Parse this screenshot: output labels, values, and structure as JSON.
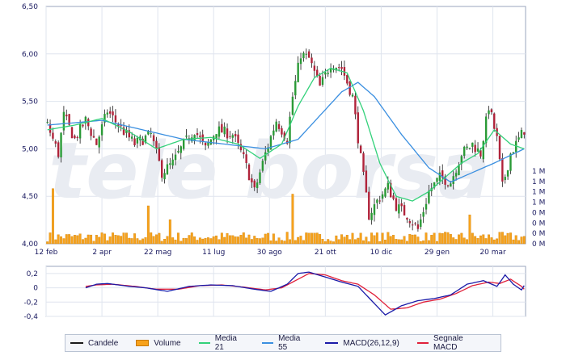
{
  "chart_data": [
    {
      "type": "candlestick",
      "title": "",
      "ylim": [
        4.0,
        6.5
      ],
      "yticks": [
        "6,50",
        "6,00",
        "5,50",
        "5,00",
        "4,50",
        "4,00"
      ],
      "xticks": [
        "12 feb",
        "2 apr",
        "22 mag",
        "11 lug",
        "30 ago",
        "21 ott",
        "10 dic",
        "29 gen",
        "20 mar"
      ],
      "volume_ticks": [
        "1 M",
        "1 M",
        "1 M",
        "1 M",
        "0 M",
        "0 M",
        "0 M",
        "0 M"
      ],
      "watermark": "tele borsa",
      "colors": {
        "up": "#2a9a36",
        "down": "#b0233a",
        "wick": "#1a1a1a",
        "ma21": "#33d17a",
        "ma55": "#3a8fe0",
        "volume": "#f7a21b",
        "macd": "#1a1aa8",
        "signal": "#e0203a",
        "grid": "#dfe4ee",
        "axis_text": "#1a1a60"
      },
      "close_anchors": [
        [
          0,
          5.25
        ],
        [
          4,
          4.95
        ],
        [
          6,
          5.35
        ],
        [
          10,
          5.1
        ],
        [
          14,
          5.3
        ],
        [
          18,
          5.05
        ],
        [
          22,
          5.4
        ],
        [
          26,
          5.25
        ],
        [
          32,
          5.05
        ],
        [
          38,
          5.15
        ],
        [
          42,
          4.75
        ],
        [
          46,
          4.85
        ],
        [
          50,
          5.05
        ],
        [
          54,
          5.2
        ],
        [
          58,
          5.0
        ],
        [
          62,
          5.2
        ],
        [
          68,
          5.15
        ],
        [
          72,
          4.9
        ],
        [
          76,
          4.55
        ],
        [
          80,
          4.95
        ],
        [
          84,
          5.3
        ],
        [
          88,
          5.1
        ],
        [
          90,
          5.55
        ],
        [
          93,
          6.0
        ],
        [
          96,
          5.95
        ],
        [
          100,
          5.65
        ],
        [
          104,
          5.9
        ],
        [
          108,
          5.85
        ],
        [
          112,
          5.55
        ],
        [
          115,
          4.9
        ],
        [
          118,
          4.3
        ],
        [
          121,
          4.45
        ],
        [
          125,
          4.6
        ],
        [
          128,
          4.4
        ],
        [
          132,
          4.3
        ],
        [
          136,
          4.15
        ],
        [
          140,
          4.55
        ],
        [
          144,
          4.7
        ],
        [
          148,
          4.65
        ],
        [
          152,
          4.95
        ],
        [
          156,
          5.05
        ],
        [
          159,
          4.95
        ],
        [
          162,
          5.45
        ],
        [
          165,
          5.1
        ],
        [
          167,
          4.6
        ],
        [
          170,
          4.95
        ],
        [
          173,
          5.1
        ],
        [
          175,
          5.2
        ]
      ],
      "ma21_anchors": [
        [
          0,
          5.2
        ],
        [
          10,
          5.25
        ],
        [
          20,
          5.32
        ],
        [
          30,
          5.18
        ],
        [
          40,
          5.0
        ],
        [
          50,
          5.1
        ],
        [
          60,
          5.12
        ],
        [
          70,
          5.05
        ],
        [
          78,
          4.9
        ],
        [
          86,
          5.05
        ],
        [
          92,
          5.45
        ],
        [
          98,
          5.75
        ],
        [
          104,
          5.85
        ],
        [
          110,
          5.8
        ],
        [
          116,
          5.4
        ],
        [
          122,
          4.85
        ],
        [
          128,
          4.5
        ],
        [
          134,
          4.45
        ],
        [
          140,
          4.55
        ],
        [
          146,
          4.7
        ],
        [
          152,
          4.85
        ],
        [
          158,
          4.95
        ],
        [
          164,
          5.2
        ],
        [
          170,
          5.05
        ],
        [
          175,
          5.0
        ]
      ],
      "ma55_anchors": [
        [
          0,
          5.25
        ],
        [
          20,
          5.3
        ],
        [
          35,
          5.2
        ],
        [
          50,
          5.1
        ],
        [
          65,
          5.05
        ],
        [
          80,
          5.0
        ],
        [
          92,
          5.1
        ],
        [
          100,
          5.35
        ],
        [
          108,
          5.6
        ],
        [
          114,
          5.7
        ],
        [
          120,
          5.55
        ],
        [
          130,
          5.15
        ],
        [
          140,
          4.8
        ],
        [
          148,
          4.65
        ],
        [
          156,
          4.75
        ],
        [
          164,
          4.85
        ],
        [
          175,
          5.0
        ]
      ],
      "volume_spikes": [
        [
          2,
          0.8
        ],
        [
          37,
          0.55
        ],
        [
          45,
          0.35
        ],
        [
          90,
          0.72
        ],
        [
          155,
          0.42
        ]
      ],
      "volume_range": [
        0,
        1.0
      ]
    },
    {
      "type": "line",
      "ylim": [
        -0.4,
        0.3
      ],
      "yticks": [
        "0,2",
        "0",
        "-0,2",
        "-0,4"
      ],
      "series": [
        {
          "name": "MACD(26,12,9)",
          "anchors": [
            [
              14,
              0.0
            ],
            [
              18,
              0.05
            ],
            [
              22,
              0.06
            ],
            [
              30,
              0.02
            ],
            [
              36,
              0.0
            ],
            [
              44,
              -0.05
            ],
            [
              52,
              0.02
            ],
            [
              60,
              0.04
            ],
            [
              68,
              0.03
            ],
            [
              76,
              -0.02
            ],
            [
              82,
              -0.05
            ],
            [
              88,
              0.05
            ],
            [
              92,
              0.2
            ],
            [
              96,
              0.22
            ],
            [
              102,
              0.15
            ],
            [
              108,
              0.08
            ],
            [
              114,
              0.02
            ],
            [
              120,
              -0.22
            ],
            [
              124,
              -0.38
            ],
            [
              130,
              -0.25
            ],
            [
              136,
              -0.18
            ],
            [
              142,
              -0.15
            ],
            [
              148,
              -0.1
            ],
            [
              154,
              0.05
            ],
            [
              160,
              0.1
            ],
            [
              165,
              0.02
            ],
            [
              168,
              0.18
            ],
            [
              171,
              0.05
            ],
            [
              174,
              -0.03
            ],
            [
              175,
              0.03
            ]
          ]
        },
        {
          "name": "Segnale MACD",
          "anchors": [
            [
              14,
              0.02
            ],
            [
              18,
              0.04
            ],
            [
              24,
              0.05
            ],
            [
              32,
              0.02
            ],
            [
              40,
              -0.02
            ],
            [
              48,
              -0.02
            ],
            [
              56,
              0.03
            ],
            [
              64,
              0.04
            ],
            [
              72,
              0.01
            ],
            [
              80,
              -0.03
            ],
            [
              86,
              0.0
            ],
            [
              92,
              0.12
            ],
            [
              96,
              0.2
            ],
            [
              102,
              0.18
            ],
            [
              108,
              0.1
            ],
            [
              114,
              0.05
            ],
            [
              120,
              -0.1
            ],
            [
              126,
              -0.3
            ],
            [
              132,
              -0.28
            ],
            [
              138,
              -0.2
            ],
            [
              144,
              -0.16
            ],
            [
              150,
              -0.08
            ],
            [
              156,
              0.03
            ],
            [
              162,
              0.08
            ],
            [
              166,
              0.06
            ],
            [
              170,
              0.12
            ],
            [
              174,
              0.02
            ],
            [
              175,
              -0.02
            ]
          ]
        }
      ]
    }
  ],
  "legend": {
    "items": [
      {
        "label": "Candele",
        "color": "#1a1a1a",
        "kind": "line"
      },
      {
        "label": "Volume",
        "color": "#f7a21b",
        "kind": "box"
      },
      {
        "label": "Media 21",
        "color": "#33d17a",
        "kind": "line"
      },
      {
        "label": "Media 55",
        "color": "#3a8fe0",
        "kind": "line"
      },
      {
        "label": "MACD(26,12,9)",
        "color": "#1a1aa8",
        "kind": "line"
      },
      {
        "label": "Segnale MACD",
        "color": "#e0203a",
        "kind": "line"
      }
    ]
  }
}
